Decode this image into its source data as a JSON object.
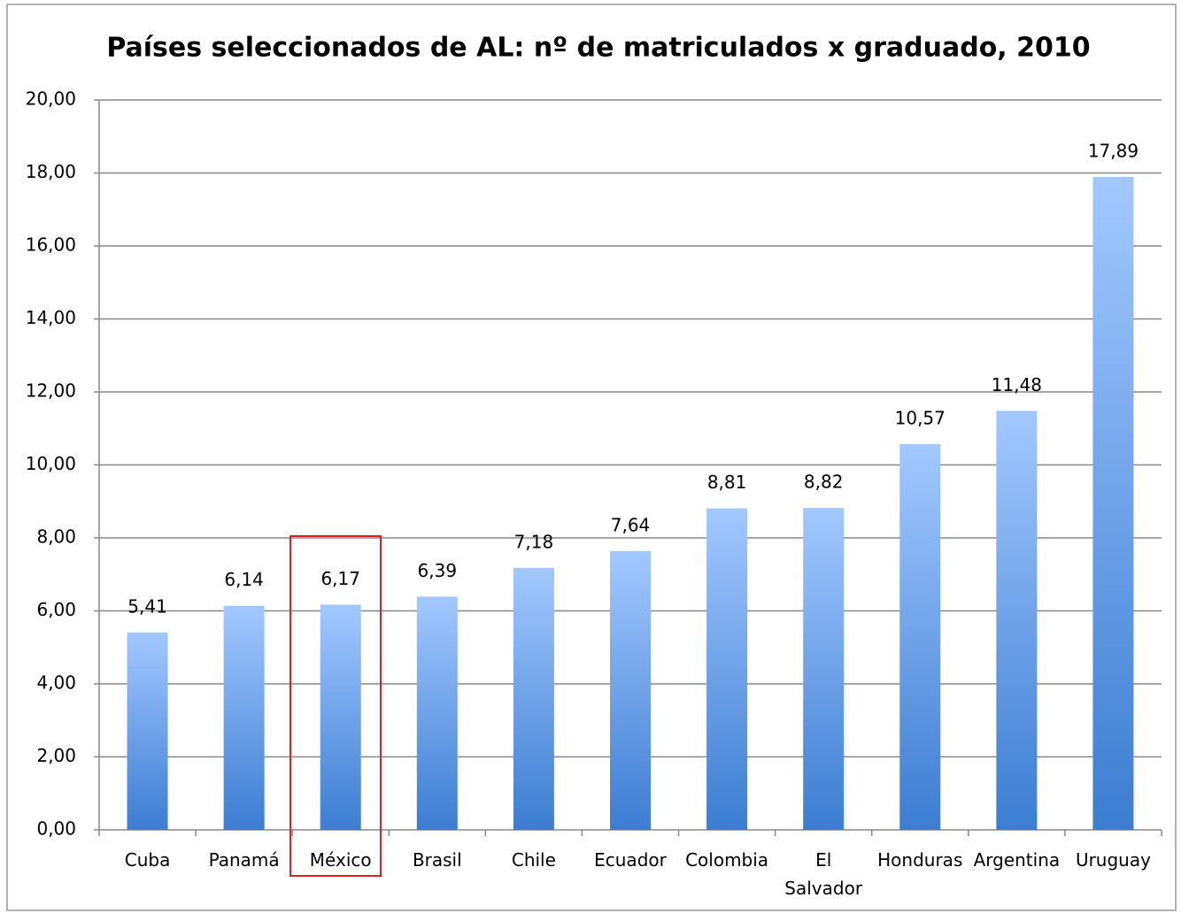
{
  "chart_data": {
    "type": "bar",
    "title": "Países seleccionados de AL: nº de matriculados x graduado, 2010",
    "categories": [
      "Cuba",
      "Panamá",
      "México",
      "Brasil",
      "Chile",
      "Ecuador",
      "Colombia",
      "El Salvador",
      "Honduras",
      "Argentina",
      "Uruguay"
    ],
    "values": [
      5.41,
      6.14,
      6.17,
      6.39,
      7.18,
      7.64,
      8.81,
      8.82,
      10.57,
      11.48,
      17.89
    ],
    "value_labels": [
      "5,41",
      "6,14",
      "6,17",
      "6,39",
      "7,18",
      "7,64",
      "8,81",
      "8,82",
      "10,57",
      "11,48",
      "17,89"
    ],
    "gradient": [
      "#a3c8ff",
      "#3c7dd2"
    ],
    "ylim": [
      0,
      20
    ],
    "yticks": [
      {
        "value": 0,
        "label": "0,00"
      },
      {
        "value": 2,
        "label": "2,00"
      },
      {
        "value": 4,
        "label": "4,00"
      },
      {
        "value": 6,
        "label": "6,00"
      },
      {
        "value": 8,
        "label": "8,00"
      },
      {
        "value": 10,
        "label": "10,00"
      },
      {
        "value": 12,
        "label": "12,00"
      },
      {
        "value": 14,
        "label": "14,00"
      },
      {
        "value": 16,
        "label": "16,00"
      },
      {
        "value": 18,
        "label": "18,00"
      },
      {
        "value": 20,
        "label": "20,00"
      }
    ],
    "grid": true
  }
}
